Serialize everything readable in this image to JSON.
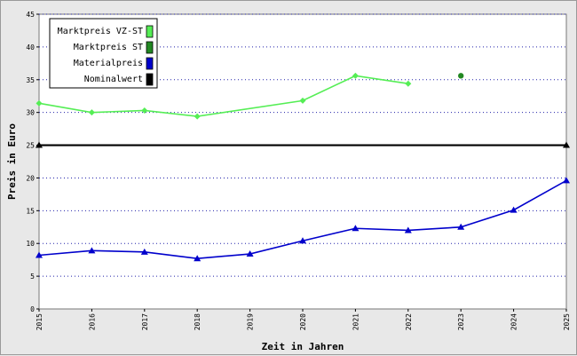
{
  "chart_data": {
    "type": "line",
    "xlabel": "Zeit in Jahren",
    "ylabel": "Preis in Euro",
    "xlim": [
      2015,
      2025
    ],
    "ylim": [
      0,
      45
    ],
    "x_ticks": [
      "2015",
      "2016",
      "2017",
      "2018",
      "2019",
      "2020",
      "2021",
      "2022",
      "2023",
      "2024",
      "2025"
    ],
    "y_ticks": [
      "0",
      "5",
      "10",
      "15",
      "20",
      "25",
      "30",
      "35",
      "40",
      "45"
    ],
    "grid": "horizontal dotted",
    "legend_position": "top-left",
    "series": [
      {
        "name": "Marktpreis VZ-ST",
        "color": "#55ee55",
        "marker": "diamond",
        "points": [
          [
            2015,
            31.4
          ],
          [
            2016,
            30.0
          ],
          [
            2017,
            30.3
          ],
          [
            2018,
            29.4
          ],
          [
            2020,
            31.8
          ],
          [
            2021,
            35.6
          ],
          [
            2022,
            34.4
          ]
        ]
      },
      {
        "name": "Marktpreis ST",
        "color": "#228822",
        "marker": "dot",
        "points": [
          [
            2023,
            35.6
          ]
        ]
      },
      {
        "name": "Materialpreis",
        "color": "#0000cc",
        "marker": "triangle",
        "points": [
          [
            2015,
            8.2
          ],
          [
            2016,
            8.9
          ],
          [
            2017,
            8.7
          ],
          [
            2018,
            7.7
          ],
          [
            2019,
            8.4
          ],
          [
            2020,
            10.4
          ],
          [
            2021,
            12.3
          ],
          [
            2022,
            12.0
          ],
          [
            2023,
            12.5
          ],
          [
            2024,
            15.1
          ],
          [
            2025,
            19.6
          ]
        ]
      },
      {
        "name": "Nominalwert",
        "color": "#000000",
        "marker": "triangle",
        "points": [
          [
            2015,
            25
          ],
          [
            2025,
            25
          ]
        ]
      }
    ]
  }
}
